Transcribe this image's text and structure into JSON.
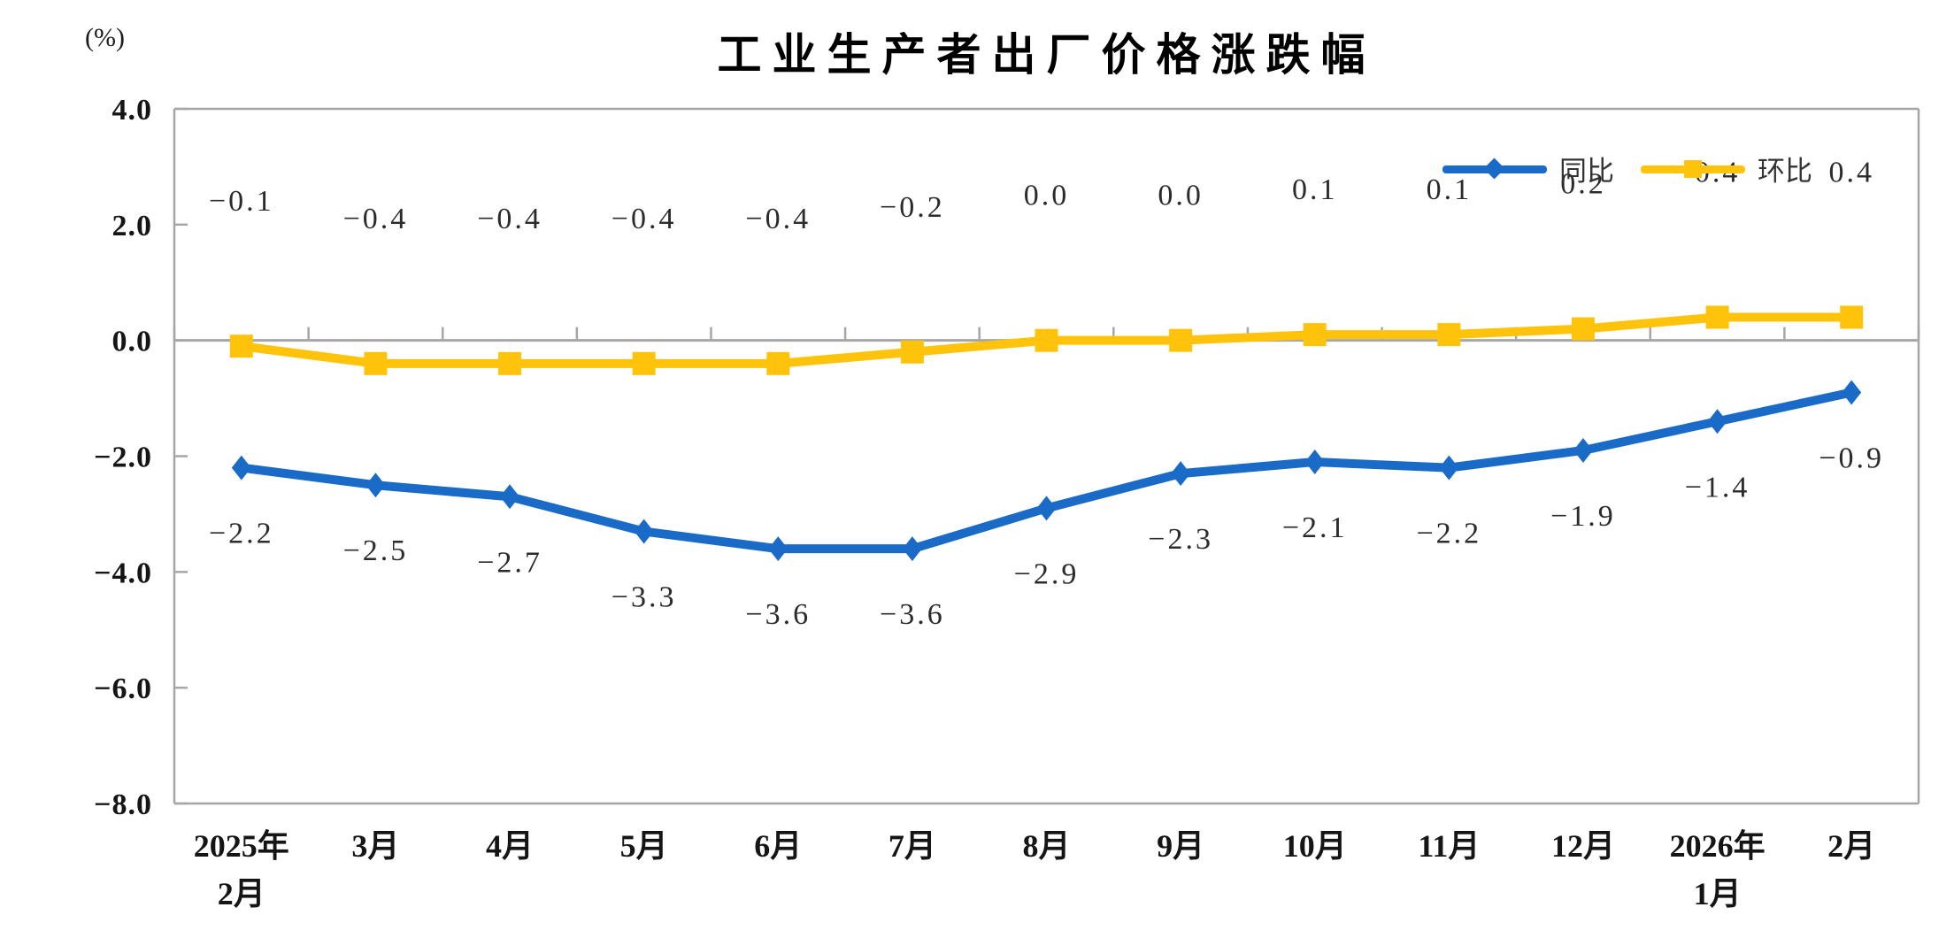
{
  "chart_data": {
    "type": "line",
    "title": "工业生产者出厂价格涨跌幅",
    "y_unit_label": "(%)",
    "categories": [
      "2025年\n2月",
      "3月",
      "4月",
      "5月",
      "6月",
      "7月",
      "8月",
      "9月",
      "10月",
      "11月",
      "12月",
      "2026年\n1月",
      "2月"
    ],
    "series": [
      {
        "id": "yoy",
        "name": "同比",
        "marker": "diamond",
        "color": "#1A6BC7",
        "label_position": "below",
        "values": [
          -2.2,
          -2.5,
          -2.7,
          -3.3,
          -3.6,
          -3.6,
          -2.9,
          -2.3,
          -2.1,
          -2.2,
          -1.9,
          -1.4,
          -0.9
        ]
      },
      {
        "id": "mom",
        "name": "环比",
        "marker": "square",
        "color": "#FFC30B",
        "label_position": "above",
        "values": [
          -0.1,
          -0.4,
          -0.4,
          -0.4,
          -0.4,
          -0.2,
          0.0,
          0.0,
          0.1,
          0.1,
          0.2,
          0.4,
          0.4
        ]
      }
    ],
    "ylim": [
      -8,
      4
    ],
    "yticks": [
      4,
      2,
      0,
      -2,
      -4,
      -6,
      -8
    ],
    "ytick_labels": [
      "4.0",
      "2.0",
      "0.0",
      "-2.0",
      "-4.0",
      "-6.0",
      "-8.0"
    ],
    "axis_color": "#A6A6A6",
    "grid": false,
    "legend_position": "top-right"
  }
}
